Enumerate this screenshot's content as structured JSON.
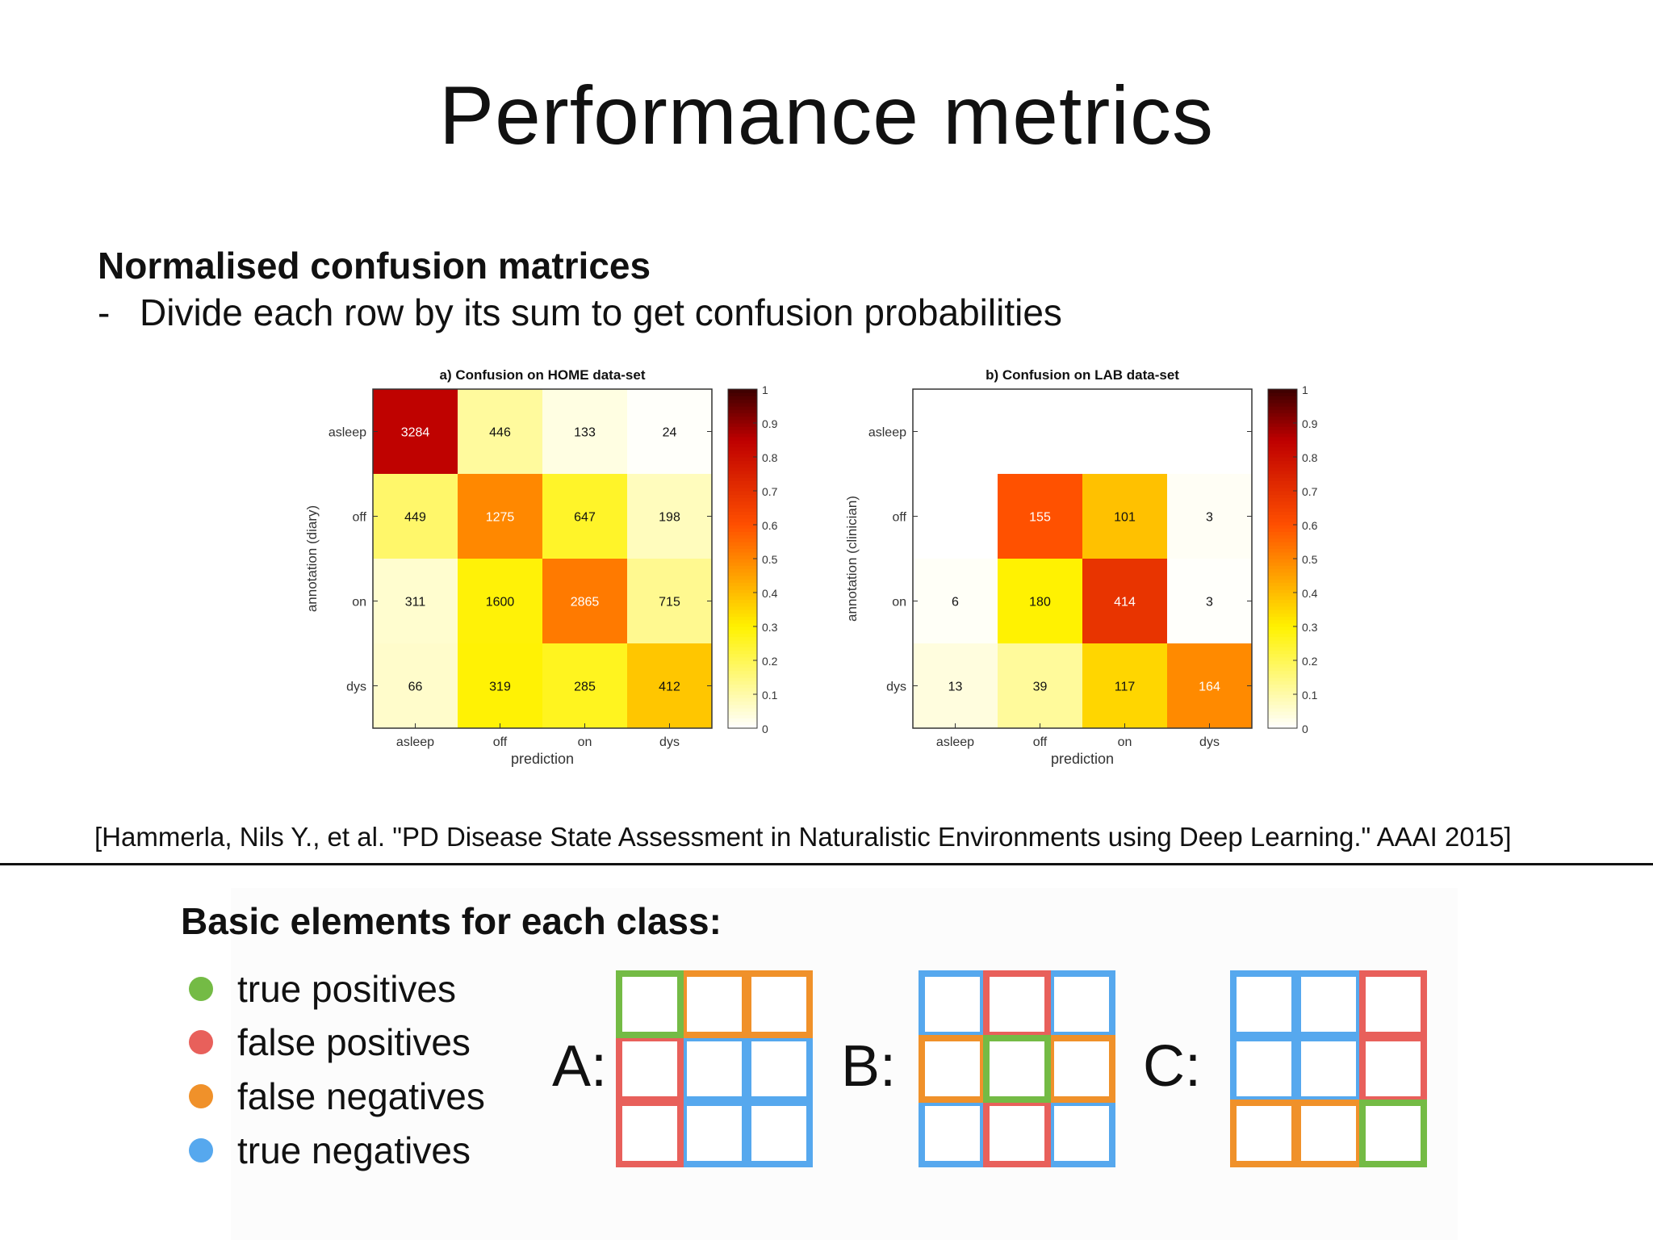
{
  "title": "Performance metrics",
  "section": {
    "heading": "Normalised confusion matrices",
    "bullet_dash": "-",
    "bullet": "Divide each row by its sum to get confusion probabilities"
  },
  "chart_data": [
    {
      "type": "heatmap",
      "title": "a) Confusion on HOME data-set",
      "xlabel": "prediction",
      "ylabel": "annotation (diary)",
      "categories": [
        "asleep",
        "off",
        "on",
        "dys"
      ],
      "rows": [
        "asleep",
        "off",
        "on",
        "dys"
      ],
      "values": [
        [
          3284,
          446,
          133,
          24
        ],
        [
          449,
          1275,
          647,
          198
        ],
        [
          311,
          1600,
          2865,
          715
        ],
        [
          66,
          319,
          285,
          412
        ]
      ],
      "colorbar": {
        "range": [
          0,
          1
        ],
        "ticks": [
          "0",
          "0.1",
          "0.2",
          "0.3",
          "0.4",
          "0.5",
          "0.6",
          "0.7",
          "0.8",
          "0.9",
          "1"
        ],
        "colormap": "hot (reversed)"
      }
    },
    {
      "type": "heatmap",
      "title": "b) Confusion on LAB data-set",
      "xlabel": "prediction",
      "ylabel": "annotation (clinician)",
      "categories": [
        "asleep",
        "off",
        "on",
        "dys"
      ],
      "rows": [
        "asleep",
        "off",
        "on",
        "dys"
      ],
      "values": [
        [
          null,
          null,
          null,
          null
        ],
        [
          null,
          155,
          101,
          3
        ],
        [
          6,
          180,
          414,
          3
        ],
        [
          13,
          39,
          117,
          164
        ]
      ],
      "colorbar": {
        "range": [
          0,
          1
        ],
        "ticks": [
          "0",
          "0.1",
          "0.2",
          "0.3",
          "0.4",
          "0.5",
          "0.6",
          "0.7",
          "0.8",
          "0.9",
          "1"
        ],
        "colormap": "hot (reversed)"
      }
    }
  ],
  "citation": "[Hammerla, Nils Y., et al. \"PD Disease State Assessment in Naturalistic Environments using Deep Learning.\" AAAI 2015]",
  "basic": {
    "heading": "Basic elements for each class:",
    "legend": [
      {
        "label": "true positives",
        "color": "#74bb45"
      },
      {
        "label": "false positives",
        "color": "#e8605b"
      },
      {
        "label": "false negatives",
        "color": "#f0912a"
      },
      {
        "label": "true negatives",
        "color": "#56a8ee"
      }
    ],
    "matrices": [
      {
        "label": "A:",
        "cells": [
          "TP",
          "FN",
          "FN",
          "FP",
          "TN",
          "TN",
          "FP",
          "TN",
          "TN"
        ]
      },
      {
        "label": "B:",
        "cells": [
          "TN",
          "FP",
          "TN",
          "FN",
          "TP",
          "FN",
          "TN",
          "FP",
          "TN"
        ]
      },
      {
        "label": "C:",
        "cells": [
          "TN",
          "TN",
          "FP",
          "TN",
          "TN",
          "FP",
          "FN",
          "FN",
          "TP"
        ]
      }
    ]
  }
}
